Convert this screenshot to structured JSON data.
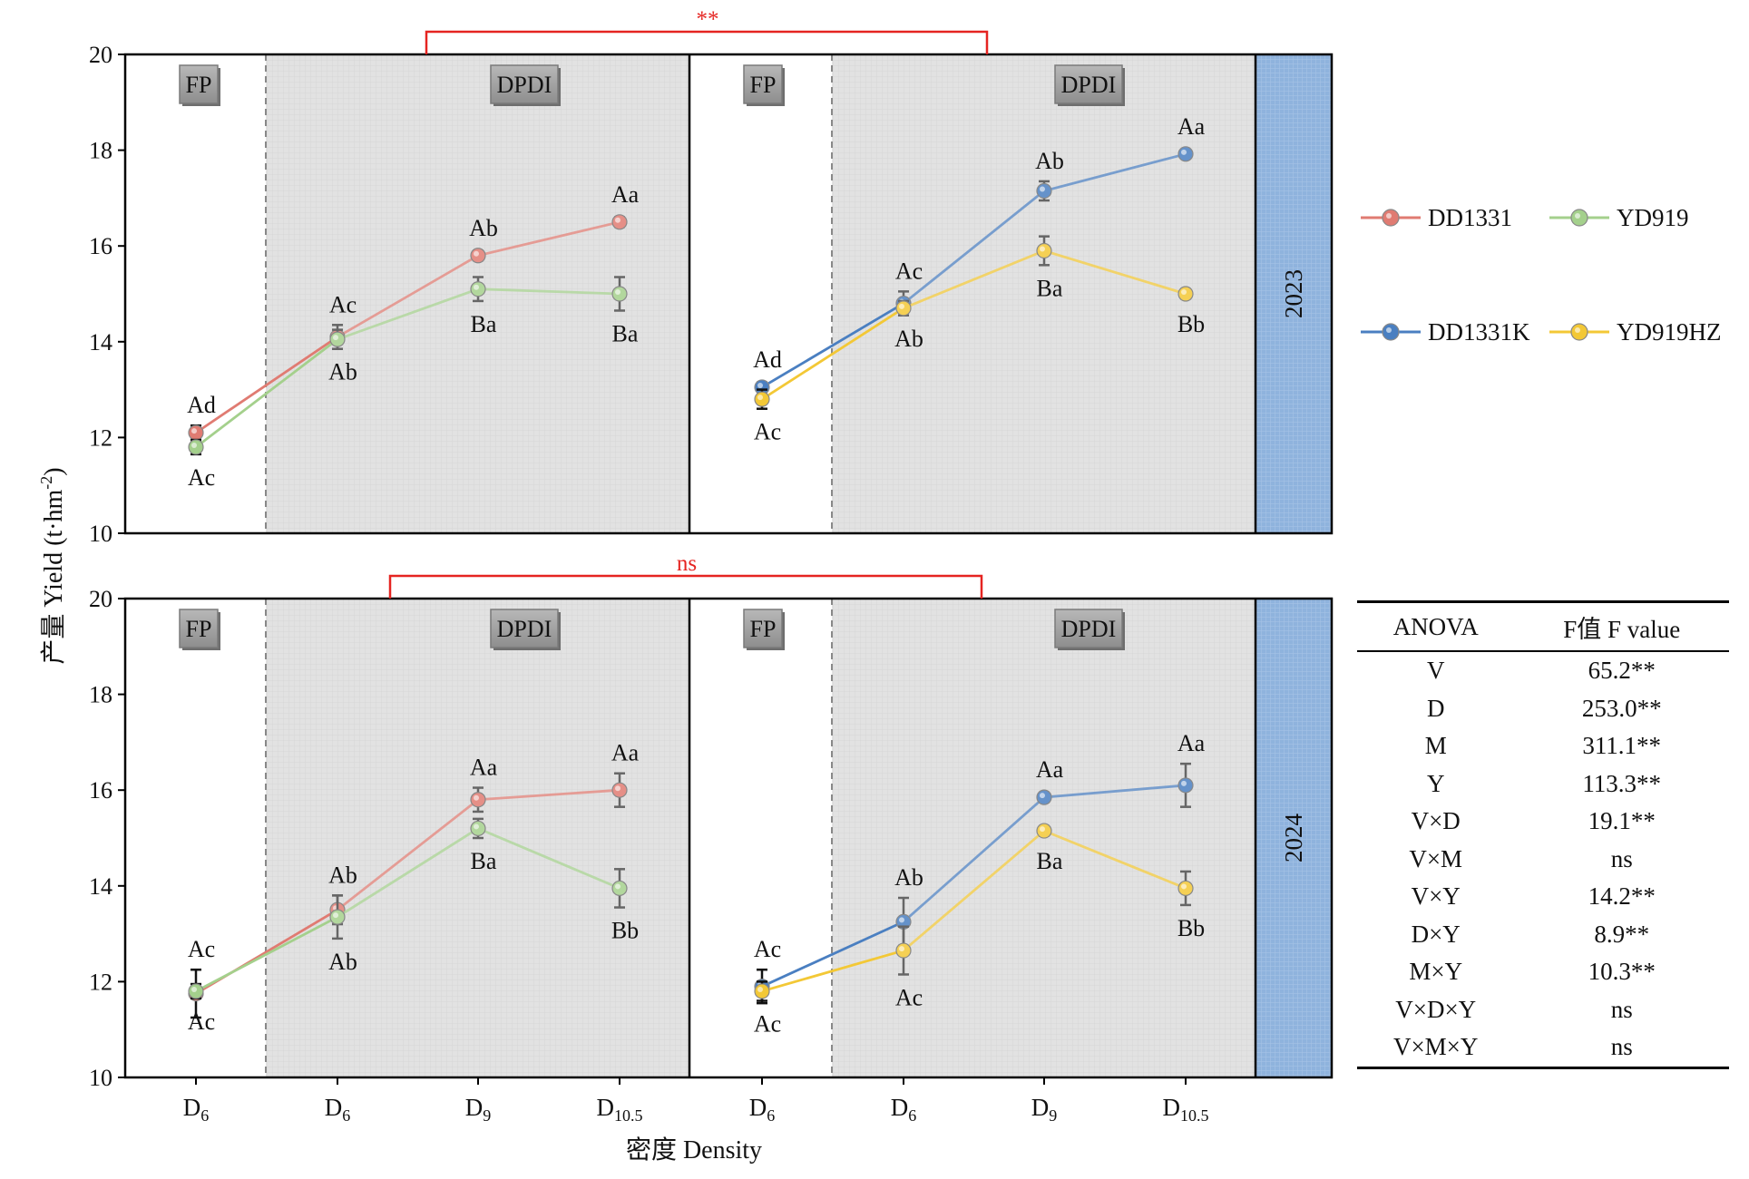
{
  "chart_data": {
    "type": "line",
    "ylabel": "产量 Yield (t·hm",
    "ylabel_sup": "-2",
    "ylabel_tail": ")",
    "xlabel": "密度 Density",
    "ylim": [
      10,
      20
    ],
    "yticks": [
      "10",
      "12",
      "14",
      "16",
      "18",
      "20"
    ],
    "x_ticks": [
      {
        "main": "D",
        "sub": "6"
      },
      {
        "main": "D",
        "sub": "6"
      },
      {
        "main": "D",
        "sub": "9"
      },
      {
        "main": "D",
        "sub": "10.5"
      }
    ],
    "zone_fp_label": "FP",
    "zone_dpdi_label": "DPDI",
    "colors": {
      "DD1331": "#e07b72",
      "YD919": "#a4d08c",
      "DD1331K": "#4a7fc1",
      "YD919HZ": "#f3c836",
      "sig": "#e52421",
      "year_band": "#8fb3dd",
      "zone_fill": "#e3e3e3"
    },
    "legend": [
      "DD1331",
      "YD919",
      "DD1331K",
      "YD919HZ"
    ],
    "rows": [
      {
        "year": "2023",
        "sig": "**",
        "panels": [
          {
            "series": [
              {
                "name": "DD1331",
                "values": [
                  12.1,
                  14.1,
                  15.8,
                  16.5
                ],
                "errors": [
                  0.15,
                  0.25,
                  0.1,
                  0.1
                ],
                "labels": [
                  "Ad",
                  "Ac",
                  "Ab",
                  "Aa"
                ],
                "label_pos": [
                  "above",
                  "above",
                  "above",
                  "above"
                ]
              },
              {
                "name": "YD919",
                "values": [
                  11.8,
                  14.05,
                  15.1,
                  15.0
                ],
                "errors": [
                  0.15,
                  0.2,
                  0.25,
                  0.35
                ],
                "labels": [
                  "Ac",
                  "Ab",
                  "Ba",
                  "Ba"
                ],
                "label_pos": [
                  "below",
                  "below",
                  "below",
                  "below"
                ]
              }
            ]
          },
          {
            "series": [
              {
                "name": "DD1331K",
                "values": [
                  13.05,
                  14.8,
                  17.15,
                  17.92
                ],
                "errors": [
                  0.1,
                  0.25,
                  0.2,
                  0.08
                ],
                "labels": [
                  "Ad",
                  "Ac",
                  "Ab",
                  "Aa"
                ],
                "label_pos": [
                  "above",
                  "above",
                  "above",
                  "above"
                ]
              },
              {
                "name": "YD919HZ",
                "values": [
                  12.8,
                  14.7,
                  15.9,
                  15.0
                ],
                "errors": [
                  0.2,
                  0.15,
                  0.3,
                  0.1
                ],
                "labels": [
                  "Ac",
                  "Ab",
                  "Ba",
                  "Bb"
                ],
                "label_pos": [
                  "below",
                  "below",
                  "below",
                  "below"
                ]
              }
            ]
          }
        ]
      },
      {
        "year": "2024",
        "sig": "ns",
        "panels": [
          {
            "series": [
              {
                "name": "DD1331",
                "values": [
                  11.75,
                  13.5,
                  15.8,
                  16.0
                ],
                "errors": [
                  0.5,
                  0.3,
                  0.25,
                  0.35
                ],
                "labels": [
                  "Ac",
                  "Ab",
                  "Aa",
                  "Aa"
                ],
                "label_pos": [
                  "above",
                  "above",
                  "above",
                  "above"
                ]
              },
              {
                "name": "YD919",
                "values": [
                  11.8,
                  13.35,
                  15.2,
                  13.95
                ],
                "errors": [
                  0.15,
                  0.45,
                  0.2,
                  0.4
                ],
                "labels": [
                  "Ac",
                  "Ab",
                  "Ba",
                  "Bb"
                ],
                "label_pos": [
                  "below",
                  "below",
                  "below",
                  "below"
                ]
              }
            ]
          },
          {
            "series": [
              {
                "name": "DD1331K",
                "values": [
                  11.9,
                  13.25,
                  15.85,
                  16.1
                ],
                "errors": [
                  0.35,
                  0.5,
                  0.1,
                  0.45
                ],
                "labels": [
                  "Ac",
                  "Ab",
                  "Aa",
                  "Aa"
                ],
                "label_pos": [
                  "above",
                  "above",
                  "above",
                  "above"
                ]
              },
              {
                "name": "YD919HZ",
                "values": [
                  11.8,
                  12.65,
                  15.15,
                  13.95
                ],
                "errors": [
                  0.2,
                  0.5,
                  0.1,
                  0.35
                ],
                "labels": [
                  "Ac",
                  "Ac",
                  "Ba",
                  "Bb"
                ],
                "label_pos": [
                  "below",
                  "below",
                  "below",
                  "below"
                ]
              }
            ]
          }
        ]
      }
    ]
  },
  "anova": {
    "header": [
      "ANOVA",
      "F值 F value"
    ],
    "rows": [
      [
        "V",
        "65.2**"
      ],
      [
        "D",
        "253.0**"
      ],
      [
        "M",
        "311.1**"
      ],
      [
        "Y",
        "113.3**"
      ],
      [
        "V×D",
        "19.1**"
      ],
      [
        "V×M",
        "ns"
      ],
      [
        "V×Y",
        "14.2**"
      ],
      [
        "D×Y",
        "8.9**"
      ],
      [
        "M×Y",
        "10.3**"
      ],
      [
        "V×D×Y",
        "ns"
      ],
      [
        "V×M×Y",
        "ns"
      ]
    ]
  }
}
